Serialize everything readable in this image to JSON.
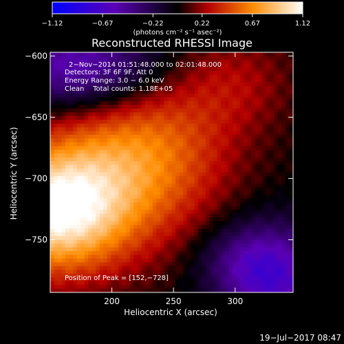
{
  "colorbar": {
    "ticks": [
      "−1.12",
      "−0.67",
      "−0.22",
      "0.22",
      "0.67",
      "1.12"
    ],
    "units": "(photons cm⁻² s⁻¹ asec⁻²)",
    "range": [
      -1.12,
      1.12
    ]
  },
  "chart_data": {
    "type": "heatmap",
    "title": "Reconstructed RHESSI Image",
    "xlabel": "Heliocentric X (arcsec)",
    "ylabel": "Heliocentric Y (arcsec)",
    "xlim": [
      150,
      347
    ],
    "ylim": [
      -793,
      -597
    ],
    "xticks": [
      200,
      250,
      300
    ],
    "yticks": [
      -600,
      -650,
      -700,
      -750
    ],
    "xtick_labels": [
      "200",
      "250",
      "300"
    ],
    "ytick_labels": [
      "−600",
      "−650",
      "−700",
      "−750"
    ],
    "peak": [
      152,
      -728
    ],
    "annotations": [
      "2−Nov−2014 01:51:48.000 to 02:01:48.000",
      "Detectors: 3F 6F 9F, Att 0",
      "Energy Range: 3.0 − 6.0 keV",
      "Clean    Total counts: 1.18E+05",
      "Position of Peak = [152,−728]"
    ]
  },
  "footer": {
    "timestamp": "19−Jul−2017 08:47"
  }
}
